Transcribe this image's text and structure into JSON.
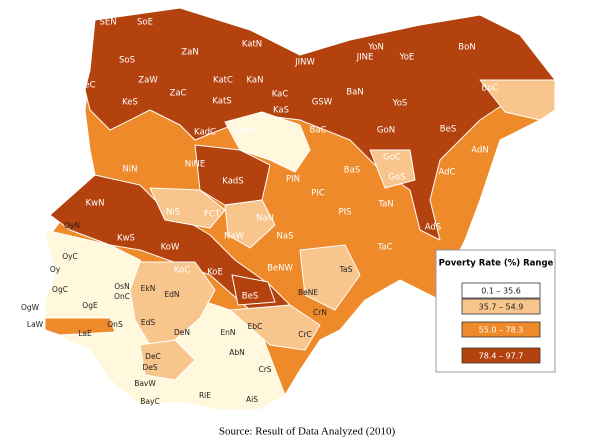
{
  "map": {
    "labels": [
      "SEN",
      "SoE",
      "ZaN",
      "KatN",
      "SoS",
      "ZaW",
      "KatC",
      "JINW",
      "JINE",
      "YoN",
      "YoE",
      "BoN",
      "eC",
      "KaN",
      "KeS",
      "ZaC",
      "KaC",
      "BaN",
      "KaS",
      "KatS",
      "GSW",
      "YoS",
      "BoC",
      "KadC",
      "KadN",
      "BaC",
      "GoN",
      "BeS",
      "AdN",
      "NiN",
      "NiNE",
      "GoC",
      "BaS",
      "GoS",
      "AdC",
      "KadS",
      "PIN",
      "PIC",
      "KwN",
      "NiS",
      "FCT",
      "NaN",
      "PIS",
      "TaN",
      "AdS",
      "OyN",
      "KwS",
      "NaW",
      "NaS",
      "TaC",
      "OyC",
      "KoW",
      "Oy",
      "KoC",
      "KoE",
      "BeNW",
      "TaS",
      "OgC",
      "OsN",
      "EkN",
      "EdN",
      "OnC",
      "BeS",
      "BeNE",
      "OgW",
      "OgE",
      "LaW",
      "OnS",
      "EdS",
      "CrN",
      "LaE",
      "DeN",
      "EnN",
      "EbC",
      "CrC",
      "DeC",
      "AbN",
      "DeS",
      "BavW",
      "CrS",
      "BayC",
      "RiE",
      "AiS"
    ],
    "legend": {
      "title": "Poverty Rate (%) Range",
      "ranges": [
        "0.1 – 35.6",
        "35.7 – 54.9",
        "55.0 – 78.3",
        "78.4 – 97.7"
      ],
      "colors": [
        "#ffffff",
        "#f8c58c",
        "#ee8a2a",
        "#b4420f"
      ]
    },
    "source": "Source: Result of Data Analyzed (2010)"
  }
}
